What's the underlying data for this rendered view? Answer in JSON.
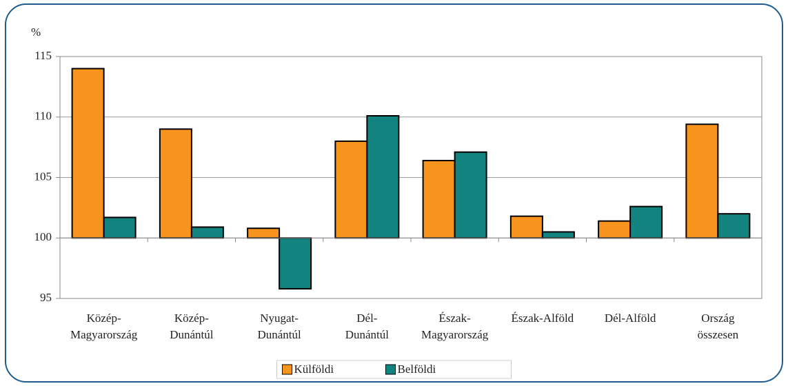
{
  "chart_data": {
    "type": "bar",
    "y_label": "%",
    "categories": [
      "Közép-\nMagyarország",
      "Közép-\nDunántúl",
      "Nyugat-\nDunántúl",
      "Dél-\nDunántúl",
      "Észak-\nMagyarország",
      "Észak-Alföld",
      "Dél-Alföld",
      "Ország\nösszesen"
    ],
    "series": [
      {
        "name": "Külföldi",
        "color": "#f7941d",
        "values": [
          114.0,
          109.0,
          100.8,
          108.0,
          106.4,
          101.8,
          101.4,
          109.4
        ]
      },
      {
        "name": "Belföldi",
        "color": "#13837f",
        "values": [
          101.7,
          100.9,
          95.8,
          110.1,
          107.1,
          100.5,
          102.6,
          102.0
        ]
      }
    ],
    "ylim": [
      95,
      115
    ],
    "yticks": [
      95,
      100,
      105,
      110,
      115
    ],
    "x_axis_crosses": 100,
    "grid": true,
    "legend": "bottom"
  }
}
